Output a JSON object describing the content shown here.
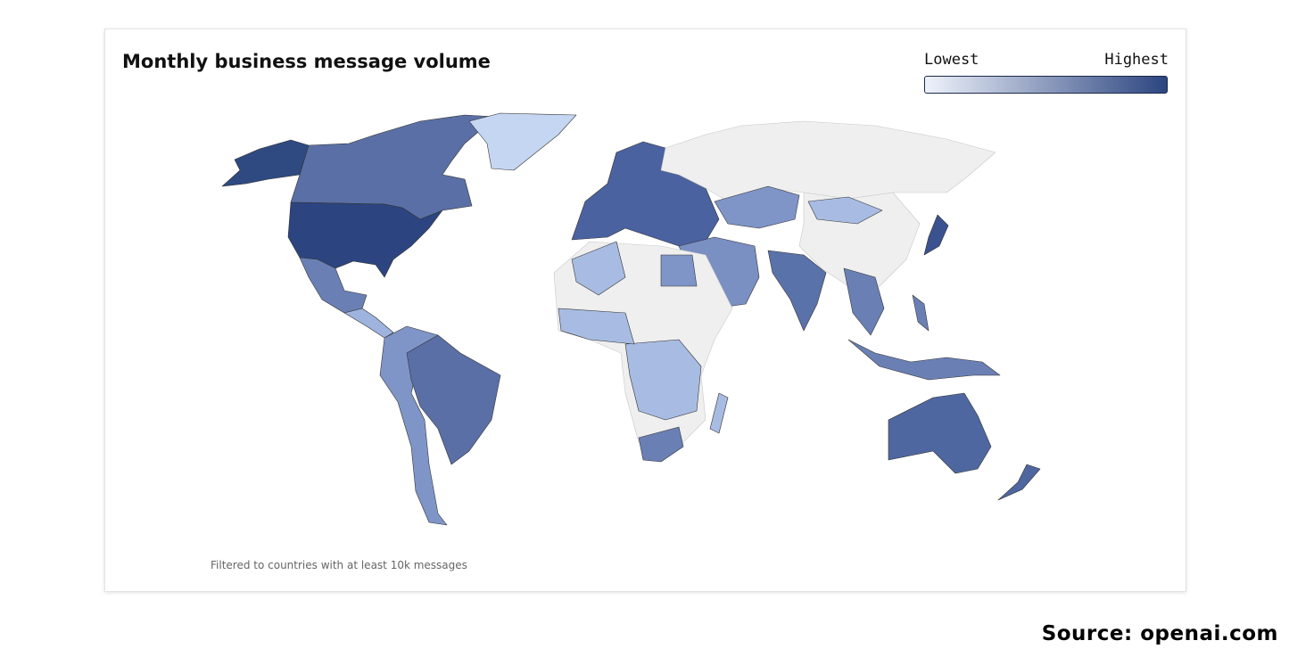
{
  "header": {
    "title": "Monthly business message volume"
  },
  "legend": {
    "low": "Lowest",
    "high": "Highest"
  },
  "note": "Filtered to countries with at least 10k messages",
  "source": "Source: openai.com"
}
